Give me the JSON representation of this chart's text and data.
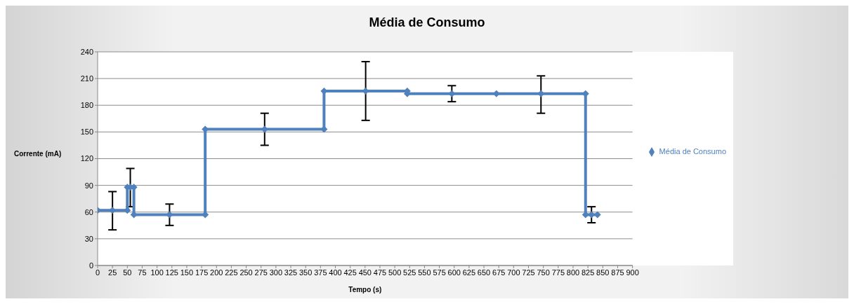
{
  "chart_data": {
    "type": "line",
    "title": "Média de Consumo",
    "xlabel": "Tempo (s)",
    "ylabel": "Corrente (mA)",
    "series": [
      {
        "name": "Média de Consumo",
        "color": "#4f81bd",
        "x": [
          0,
          25,
          50,
          50,
          55,
          61,
          61,
          121,
          181,
          181,
          281,
          381,
          381,
          451,
          521,
          521,
          596,
          671,
          746,
          821,
          821,
          831,
          841
        ],
        "values": [
          62,
          62,
          62,
          88,
          88,
          88,
          57,
          57,
          57,
          153,
          153,
          153,
          196,
          196,
          196,
          193,
          193,
          193,
          193,
          193,
          57,
          57,
          57
        ],
        "errors": [
          null,
          [
            40,
            83
          ],
          null,
          null,
          [
            66,
            109
          ],
          null,
          null,
          [
            45,
            69
          ],
          null,
          null,
          [
            135,
            171
          ],
          null,
          null,
          [
            163,
            229
          ],
          null,
          null,
          [
            184,
            202
          ],
          null,
          [
            171,
            213
          ],
          null,
          null,
          [
            48,
            66
          ],
          null
        ]
      }
    ],
    "xlim": [
      0,
      900
    ],
    "xticks": [
      0,
      25,
      50,
      75,
      100,
      125,
      150,
      175,
      200,
      225,
      250,
      275,
      300,
      325,
      350,
      375,
      400,
      425,
      450,
      475,
      500,
      525,
      550,
      575,
      600,
      625,
      650,
      675,
      700,
      725,
      750,
      775,
      800,
      825,
      850,
      875,
      900
    ],
    "ylim": [
      0,
      240
    ],
    "yticks": [
      0,
      30,
      60,
      90,
      120,
      150,
      180,
      210,
      240
    ],
    "grid": "y",
    "legend": "right",
    "marker": "diamond",
    "line_style": "solid"
  }
}
